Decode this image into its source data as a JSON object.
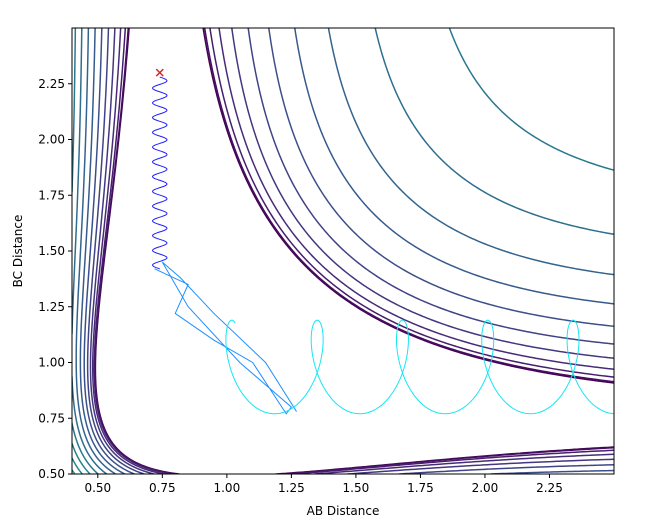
{
  "chart_data": {
    "type": "contour",
    "xlabel": "AB Distance",
    "ylabel": "BC Distance",
    "xlim": [
      0.4,
      2.5
    ],
    "ylim": [
      0.5,
      2.5
    ],
    "xticks": [
      0.5,
      0.75,
      1.0,
      1.25,
      1.5,
      1.75,
      2.0,
      2.25
    ],
    "xtick_labels": [
      "0.50",
      "0.75",
      "1.00",
      "1.25",
      "1.50",
      "1.75",
      "2.00",
      "2.25"
    ],
    "yticks": [
      0.5,
      0.75,
      1.0,
      1.25,
      1.5,
      1.75,
      2.0,
      2.25
    ],
    "ytick_labels": [
      "0.50",
      "0.75",
      "1.00",
      "1.25",
      "1.50",
      "1.75",
      "2.00",
      "2.25"
    ],
    "colormap": "viridis",
    "contour_levels": 26,
    "start_marker": {
      "x": 0.74,
      "y": 2.3,
      "symbol": "x",
      "color": "#d62728"
    },
    "trajectory_colors": [
      "#1f1fff",
      "#1f8fff",
      "#17e6f2"
    ],
    "grid": false
  }
}
